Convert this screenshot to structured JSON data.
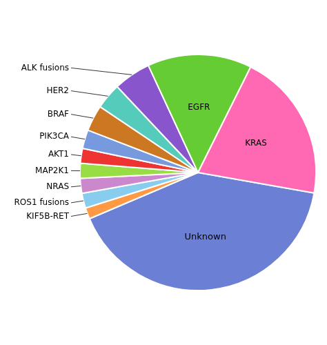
{
  "chart_data": {
    "type": "pie",
    "categories": [
      "Unknown",
      "KIF5B-RET",
      "ROS1 fusions",
      "NRAS",
      "MAP2K1",
      "AKT1",
      "PIK3CA",
      "BRAF",
      "HER2",
      "ALK fusions",
      "EGFR",
      "KRAS"
    ],
    "values": [
      40,
      1.5,
      2,
      2,
      2,
      2,
      2.5,
      3.5,
      3.5,
      5,
      14,
      20
    ],
    "colors": [
      "#6B7FD4",
      "#FF9944",
      "#88CCEE",
      "#CC88CC",
      "#99DD44",
      "#EE3333",
      "#7799DD",
      "#CC7722",
      "#55CCBB",
      "#8855CC",
      "#66CC33",
      "#FF69B4"
    ]
  }
}
